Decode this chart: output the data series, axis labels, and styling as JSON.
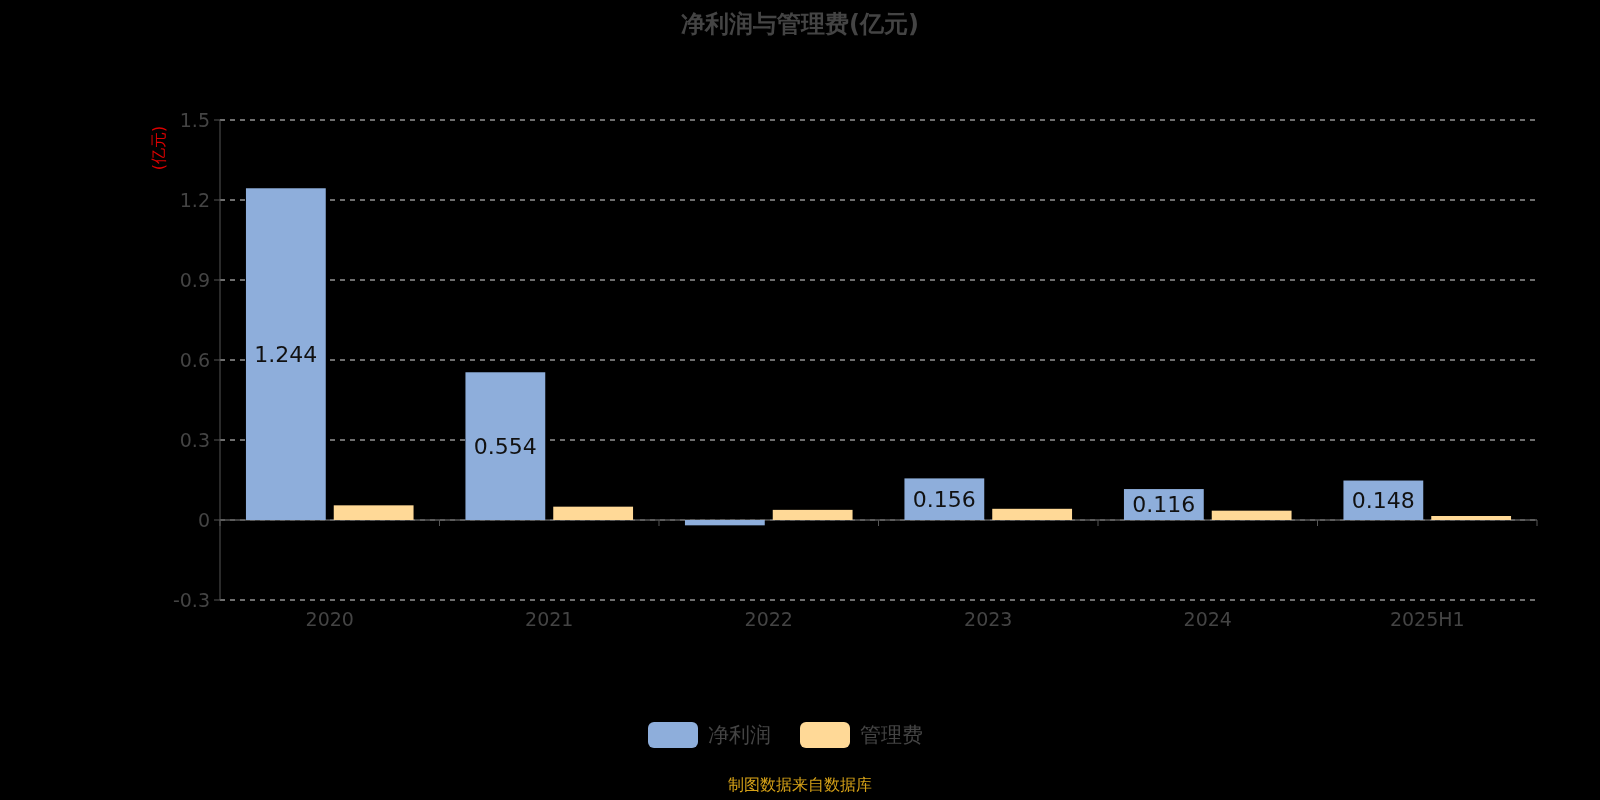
{
  "chart_data": {
    "type": "bar",
    "title": "净利润与管理费(亿元)",
    "ylabel": "(亿元)",
    "categories": [
      "2020",
      "2021",
      "2022",
      "2023",
      "2024",
      "2025H1"
    ],
    "series": [
      {
        "name": "净利润",
        "color": "#8eaedb",
        "values": [
          1.244,
          0.554,
          -0.02,
          0.156,
          0.116,
          0.148
        ],
        "value_labels": [
          "1.244",
          "0.554",
          null,
          "0.156",
          "0.116",
          "0.148"
        ]
      },
      {
        "name": "管理费",
        "color": "#ffd997",
        "values": [
          0.055,
          0.05,
          0.038,
          0.042,
          0.035,
          0.015
        ]
      }
    ],
    "ylim": [
      -0.3,
      1.5
    ],
    "yticks": [
      -0.3,
      0,
      0.3,
      0.6,
      0.9,
      1.2,
      1.5
    ],
    "grid": "y",
    "legend": "bottom",
    "annotations": [
      "制图数据来自数据库"
    ]
  }
}
